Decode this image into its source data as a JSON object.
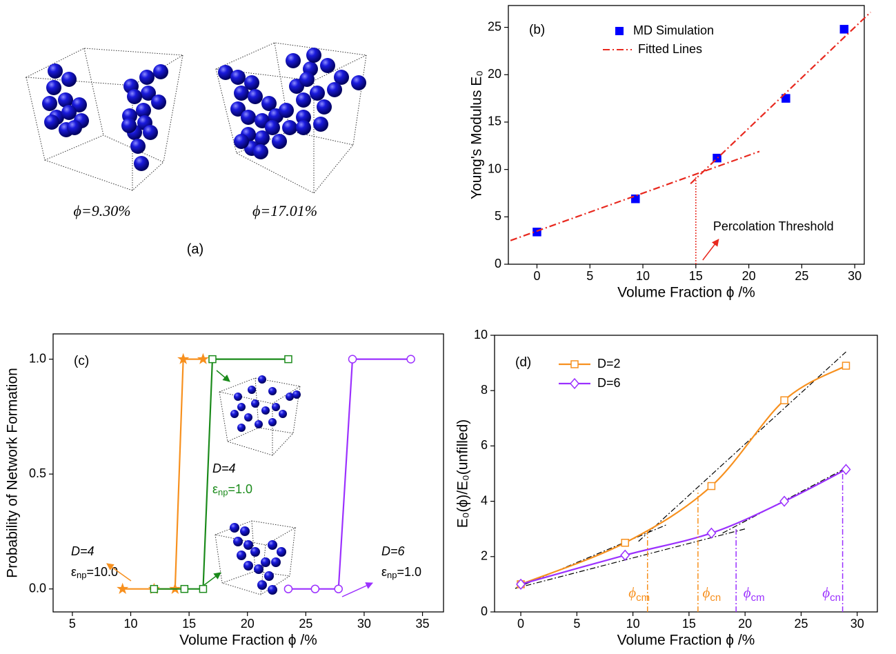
{
  "panel_a": {
    "labels": [
      "ϕ=9.30%",
      "ϕ=17.01%"
    ],
    "caption": "(a)"
  },
  "chart_data": [
    {
      "type": "scatter",
      "panel_label": "(b)",
      "x_label": "Volume Fraction ϕ /%",
      "y_label": "Young's Modulus E₀",
      "xlim": [
        -2.7,
        30.9
      ],
      "xticks": [
        0,
        5,
        10,
        15,
        20,
        25,
        30
      ],
      "ylim": [
        0,
        27.3
      ],
      "yticks": [
        0,
        5,
        10,
        15,
        20,
        25
      ],
      "series": [
        {
          "name": "MD Simulation",
          "color": "#0000ff",
          "marker": "square",
          "x": [
            0,
            9.3,
            17,
            23.5,
            29
          ],
          "values": [
            3.4,
            6.9,
            11.2,
            17.5,
            24.8
          ]
        },
        {
          "name": "Fitted Lines",
          "color": "#e8281e",
          "style": "dash-dot",
          "x": [
            -2.5,
            21,
            null,
            14.5,
            31.5
          ],
          "values": [
            2.5,
            11.9,
            null,
            8.5,
            26.6
          ]
        }
      ],
      "thresholds": [
        {
          "x": 15,
          "y": 9.3,
          "color": "#e8281e"
        }
      ],
      "annotation": "Percolation Threshold"
    },
    {
      "type": "line",
      "panel_label": "(c)",
      "x_label": "Volume Fraction ϕ /%",
      "y_label": "Probability of Network Formation",
      "xlim": [
        3.35,
        36.8
      ],
      "xticks": [
        5,
        10,
        15,
        20,
        25,
        30,
        35
      ],
      "ylim": [
        -0.1,
        1.11
      ],
      "yticks": [
        {
          "value": 0,
          "label": "0.0"
        },
        {
          "value": 0.5,
          "label": "0.5"
        },
        {
          "value": 1,
          "label": "1.0"
        }
      ],
      "series": [
        {
          "color": "#f7901e",
          "marker": "star",
          "x": [
            9.3,
            12,
            13.8,
            14.5,
            16.2
          ],
          "values": [
            0,
            0,
            0,
            1,
            1
          ]
        },
        {
          "color": "#1a8a1a",
          "marker": "square",
          "x": [
            12,
            14.6,
            16.2,
            17,
            23.5
          ],
          "values": [
            0,
            0,
            0,
            1,
            1
          ]
        },
        {
          "color": "#9b30ff",
          "marker": "circle",
          "x": [
            23.5,
            25.8,
            27.8,
            29,
            34
          ],
          "values": [
            0,
            0,
            0,
            1,
            1
          ]
        }
      ],
      "annotations": [
        {
          "d": "D=4",
          "eps": "ε",
          "sub": "np",
          "val": "=10.0"
        },
        {
          "d": "D=4",
          "eps": "ε",
          "sub": "np",
          "val": "=1.0"
        },
        {
          "d": "D=6",
          "eps": "ε",
          "sub": "np",
          "val": "=1.0"
        }
      ]
    },
    {
      "type": "line",
      "panel_label": "(d)",
      "x_label": "Volume Fraction ϕ /%",
      "y_label": "E₀(ϕ)/E₀(unfilled)",
      "xlim": [
        -2.34,
        31.8
      ],
      "xticks": [
        0,
        5,
        10,
        15,
        20,
        25,
        30
      ],
      "ylim": [
        0,
        10
      ],
      "yticks": [
        0,
        2,
        4,
        6,
        8,
        10
      ],
      "series": [
        {
          "name": "D=2",
          "color": "#f7901e",
          "marker": "square",
          "x": [
            0,
            9.3,
            17,
            23.5,
            29
          ],
          "values": [
            1,
            2.5,
            4.55,
            7.65,
            8.9
          ]
        },
        {
          "name": "D=6",
          "color": "#9b30ff",
          "marker": "diamond",
          "x": [
            0,
            9.3,
            17,
            23.5,
            29
          ],
          "values": [
            1,
            2.05,
            2.85,
            4.0,
            5.15
          ]
        }
      ],
      "fit_lines": {
        "color": "#000000",
        "x": [
          -0.5,
          13,
          null,
          10.5,
          29,
          null,
          -0.5,
          20,
          null,
          18,
          29
        ],
        "values": [
          0.85,
          3.15,
          null,
          2.55,
          9.4,
          null,
          0.85,
          3.0,
          null,
          2.85,
          5.2
        ]
      },
      "thresholds": [
        {
          "x": 11.3,
          "y": 2.95,
          "color": "#f7901e",
          "symbol": "ϕ",
          "sub": "cm"
        },
        {
          "x": 15.8,
          "y": 4.4,
          "color": "#f7901e",
          "symbol": "ϕ",
          "sub": "cn"
        },
        {
          "x": 19.2,
          "y": 3.0,
          "color": "#9b30ff",
          "symbol": "ϕ",
          "sub": "cm"
        },
        {
          "x": 28.7,
          "y": 5.1,
          "color": "#9b30ff",
          "symbol": "ϕ",
          "sub": "cn"
        }
      ]
    }
  ]
}
